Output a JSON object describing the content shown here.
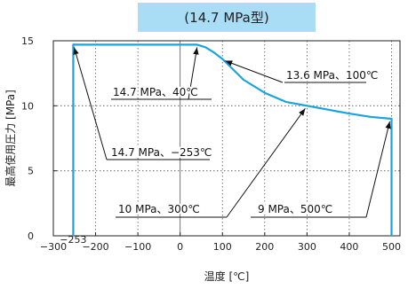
{
  "chart_data": {
    "type": "line",
    "title": "(14.7 MPa型)",
    "xlabel": "温度 [℃]",
    "ylabel": "最高使用圧力 [MPa]",
    "xlim": [
      -300,
      520
    ],
    "ylim": [
      0,
      15
    ],
    "x_ticks": [
      -300,
      -200,
      -100,
      0,
      100,
      200,
      300,
      400,
      500
    ],
    "x_tick_labels": [
      "−300",
      "−200",
      "−100",
      "0",
      "100",
      "200",
      "300",
      "400",
      "500"
    ],
    "y_ticks": [
      0,
      5,
      10,
      15
    ],
    "y_tick_labels": [
      "0",
      "5",
      "10",
      "15"
    ],
    "extra_x_label": "−253",
    "grid": true,
    "series": [
      {
        "color": "#1aa3df",
        "points": [
          {
            "x": -253,
            "y": 0
          },
          {
            "x": -253,
            "y": 14.7
          },
          {
            "x": 40,
            "y": 14.7
          },
          {
            "x": 60,
            "y": 14.5
          },
          {
            "x": 80,
            "y": 14.1
          },
          {
            "x": 100,
            "y": 13.6
          },
          {
            "x": 150,
            "y": 12.0
          },
          {
            "x": 200,
            "y": 11.0
          },
          {
            "x": 250,
            "y": 10.3
          },
          {
            "x": 300,
            "y": 10.0
          },
          {
            "x": 350,
            "y": 9.7
          },
          {
            "x": 400,
            "y": 9.4
          },
          {
            "x": 450,
            "y": 9.15
          },
          {
            "x": 500,
            "y": 9.0
          },
          {
            "x": 500,
            "y": 0
          }
        ]
      }
    ],
    "annotations": [
      {
        "text": "13.6 MPa、100℃",
        "x": 100,
        "y": 13.6
      },
      {
        "text": "14.7 MPa、40℃",
        "x": 40,
        "y": 14.7
      },
      {
        "text": "14.7 MPa、−253℃",
        "x": -253,
        "y": 14.7
      },
      {
        "text": "10 MPa、300℃",
        "x": 300,
        "y": 10.0
      },
      {
        "text": "9 MPa、500℃",
        "x": 500,
        "y": 9.0
      }
    ]
  }
}
